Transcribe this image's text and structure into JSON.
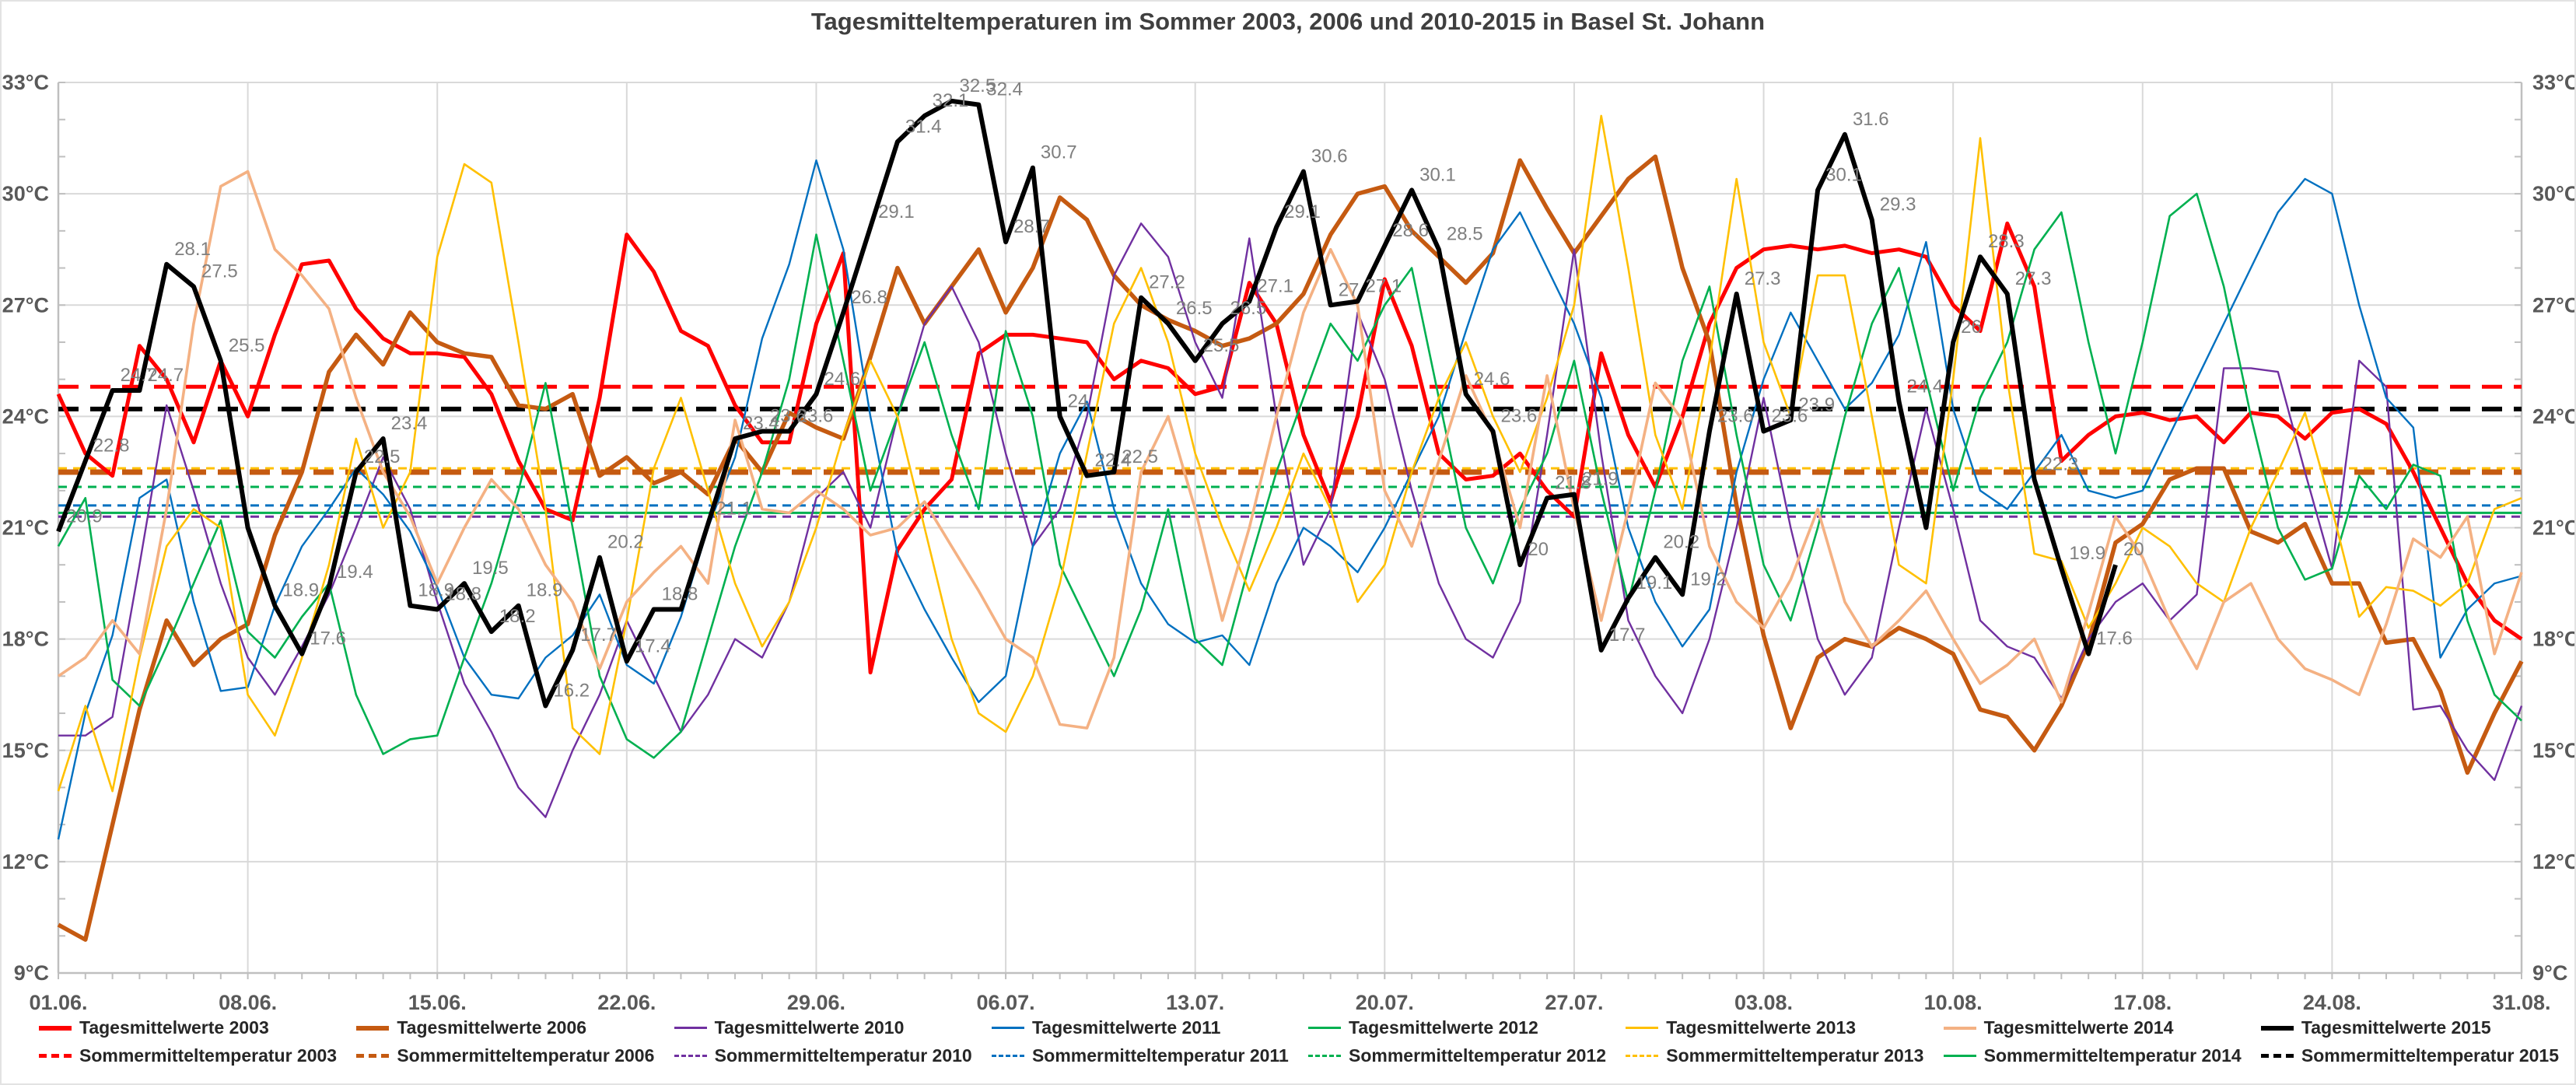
{
  "title": "Tagesmitteltemperaturen im Sommer 2003, 2006 und 2010-2015 in Basel St. Johann",
  "y_axis": {
    "unit": "°C",
    "min": 9,
    "max": 33,
    "major_step": 3,
    "minor_step": 1,
    "tick_labels": [
      "9°C",
      "12°C",
      "15°C",
      "18°C",
      "21°C",
      "24°C",
      "27°C",
      "30°C",
      "33°C"
    ],
    "shown_on_both_sides": true
  },
  "x_axis": {
    "days_total": 92,
    "tick_interval_days": 7,
    "minor_tick": "daily",
    "tick_labels": [
      "01.06.",
      "08.06.",
      "15.06.",
      "22.06.",
      "29.06.",
      "06.07.",
      "13.07.",
      "20.07.",
      "27.07.",
      "03.08.",
      "10.08.",
      "17.08.",
      "24.08.",
      "31.08."
    ]
  },
  "colors": {
    "grid": "#d9d9d9",
    "axis": "#bfbfbf",
    "tick_text": "#595959",
    "title_text": "#3f3f3f",
    "point_label_text": "#7f7f7f"
  },
  "chart_data": {
    "type": "line",
    "title": "Tagesmitteltemperaturen im Sommer 2003, 2006 und 2010-2015 in Basel St. Johann",
    "x_unit": "Tag (1 = 01.06., 92 = 31.08.)",
    "ylim": [
      9,
      33
    ],
    "grid": true,
    "legend_position": "bottom",
    "series": [
      {
        "name": "Tagesmittelwerte 2003",
        "color": "#ff0000",
        "width": 5,
        "values": [
          24.6,
          23.0,
          22.4,
          25.9,
          25.0,
          23.3,
          25.5,
          24.0,
          26.2,
          28.1,
          28.2,
          26.9,
          26.1,
          25.7,
          25.7,
          25.6,
          24.6,
          22.8,
          21.5,
          21.2,
          24.5,
          28.9,
          27.9,
          26.3,
          25.9,
          24.3,
          23.3,
          23.3,
          26.5,
          28.4,
          17.1,
          20.4,
          21.5,
          22.3,
          25.7,
          26.2,
          26.2,
          26.1,
          26.0,
          25.0,
          25.5,
          25.3,
          24.6,
          24.8,
          27.6,
          26.5,
          23.5,
          21.7,
          24.0,
          27.7,
          25.9,
          23.0,
          22.3,
          22.4,
          23.0,
          22.0,
          21.3,
          25.7,
          23.5,
          22.1,
          24.0,
          26.5,
          28.0,
          28.5,
          28.6,
          28.5,
          28.6,
          28.4,
          28.5,
          28.3,
          27.0,
          26.3,
          29.2,
          27.5,
          22.8,
          23.5,
          24.0,
          24.1,
          23.9,
          24.0,
          23.3,
          24.1,
          24.0,
          23.4,
          24.1,
          24.2,
          23.8,
          22.5,
          21.0,
          19.5,
          18.5,
          18.0
        ]
      },
      {
        "name": "Tagesmittelwerte 2006",
        "color": "#c55a11",
        "width": 5.5,
        "values": [
          10.3,
          9.9,
          13.0,
          16.1,
          18.5,
          17.3,
          18.0,
          18.4,
          20.8,
          22.5,
          25.2,
          26.2,
          25.4,
          26.8,
          26.0,
          25.7,
          25.6,
          24.3,
          24.2,
          24.6,
          22.4,
          22.9,
          22.2,
          22.5,
          21.9,
          23.4,
          22.5,
          24.1,
          23.7,
          23.4,
          25.6,
          28.0,
          26.5,
          27.5,
          28.5,
          26.8,
          28.0,
          29.9,
          29.3,
          27.8,
          27.0,
          26.6,
          26.3,
          25.9,
          26.1,
          26.5,
          27.3,
          28.9,
          30.0,
          30.2,
          29.0,
          28.3,
          27.6,
          28.4,
          30.9,
          29.6,
          28.4,
          29.4,
          30.4,
          31.0,
          28.0,
          26.0,
          21.6,
          18.1,
          15.6,
          17.5,
          18.0,
          17.8,
          18.3,
          18.0,
          17.6,
          16.1,
          15.9,
          15.0,
          16.2,
          17.9,
          20.6,
          21.1,
          22.3,
          22.6,
          22.6,
          20.9,
          20.6,
          21.1,
          19.5,
          19.5,
          17.9,
          18.0,
          16.6,
          14.4,
          16.0,
          17.4
        ]
      },
      {
        "name": "Tagesmittelwerte 2010",
        "color": "#7030a0",
        "width": 2.4,
        "values": [
          15.4,
          15.4,
          15.9,
          20.0,
          24.3,
          22.0,
          19.5,
          17.5,
          16.5,
          17.8,
          19.2,
          21.0,
          22.9,
          21.5,
          19.0,
          16.8,
          15.5,
          14.0,
          13.2,
          15.0,
          16.5,
          18.5,
          17.0,
          15.5,
          16.5,
          18.0,
          17.5,
          19.0,
          21.8,
          22.5,
          21.0,
          24.0,
          26.5,
          27.5,
          26.0,
          23.0,
          20.5,
          21.5,
          24.0,
          27.8,
          29.2,
          28.3,
          26.0,
          24.5,
          28.8,
          24.0,
          20.0,
          21.5,
          26.8,
          25.0,
          22.0,
          19.5,
          18.0,
          17.5,
          19.0,
          23.5,
          28.5,
          23.0,
          18.5,
          17.0,
          16.0,
          18.0,
          21.0,
          24.5,
          21.0,
          18.0,
          16.5,
          17.5,
          21.0,
          24.2,
          21.5,
          18.5,
          17.8,
          17.5,
          16.4,
          18.0,
          19.0,
          19.5,
          18.5,
          19.2,
          25.3,
          25.3,
          25.2,
          22.5,
          19.9,
          25.5,
          24.8,
          16.1,
          16.2,
          15.0,
          14.2,
          16.2
        ]
      },
      {
        "name": "Tagesmittelwerte 2011",
        "color": "#0070c0",
        "width": 2.4,
        "values": [
          12.6,
          16.0,
          18.1,
          21.8,
          22.3,
          19.0,
          16.6,
          16.7,
          18.9,
          20.5,
          21.5,
          22.6,
          21.9,
          20.9,
          19.4,
          17.5,
          16.5,
          16.4,
          17.5,
          18.1,
          19.2,
          17.3,
          16.8,
          18.6,
          21.0,
          22.9,
          26.1,
          28.1,
          30.9,
          28.5,
          24.0,
          20.3,
          18.8,
          17.5,
          16.3,
          17.0,
          20.5,
          23.0,
          24.4,
          21.5,
          19.5,
          18.4,
          17.9,
          18.1,
          17.3,
          19.5,
          21.0,
          20.5,
          19.8,
          21.0,
          22.5,
          24.0,
          26.3,
          28.5,
          29.5,
          28.0,
          26.5,
          24.5,
          21.0,
          19.0,
          17.8,
          18.8,
          22.5,
          25.0,
          26.8,
          25.5,
          24.2,
          24.9,
          26.2,
          28.7,
          24.2,
          22.0,
          21.5,
          22.5,
          23.5,
          22.0,
          21.8,
          22.0,
          23.5,
          25.0,
          26.5,
          28.0,
          29.5,
          30.4,
          30.0,
          27.0,
          24.5,
          23.7,
          17.5,
          18.8,
          19.5,
          19.7
        ]
      },
      {
        "name": "Tagesmittelwerte 2012",
        "color": "#00b050",
        "width": 2.6,
        "values": [
          20.5,
          21.8,
          16.9,
          16.2,
          17.8,
          19.5,
          21.2,
          18.2,
          17.5,
          18.6,
          19.5,
          16.5,
          14.9,
          15.3,
          15.4,
          17.5,
          19.5,
          22.0,
          24.9,
          21.0,
          17.0,
          15.3,
          14.8,
          15.5,
          18.0,
          20.5,
          22.5,
          25.0,
          28.9,
          25.5,
          22.0,
          24.0,
          26.0,
          23.5,
          21.5,
          26.3,
          24.0,
          20.0,
          18.5,
          17.0,
          18.8,
          21.5,
          18.0,
          17.3,
          20.0,
          22.5,
          24.5,
          26.5,
          25.5,
          27.0,
          28.0,
          24.5,
          21.0,
          19.5,
          21.5,
          23.0,
          25.5,
          22.0,
          19.0,
          22.0,
          25.5,
          27.5,
          23.5,
          20.0,
          18.5,
          21.0,
          24.0,
          26.5,
          28.0,
          25.0,
          22.0,
          24.5,
          26.0,
          28.5,
          29.5,
          26.0,
          23.0,
          26.0,
          29.4,
          30.0,
          27.5,
          24.0,
          21.0,
          19.6,
          19.9,
          22.4,
          21.5,
          22.7,
          22.4,
          18.5,
          16.5,
          15.8
        ]
      },
      {
        "name": "Tagesmittelwerte 2013",
        "color": "#ffc000",
        "width": 2.6,
        "values": [
          13.9,
          16.2,
          13.9,
          17.5,
          20.5,
          21.5,
          21.0,
          16.5,
          15.4,
          17.5,
          20.0,
          23.4,
          21.0,
          22.5,
          28.3,
          30.8,
          30.3,
          26.0,
          21.5,
          15.6,
          14.9,
          18.5,
          22.6,
          24.5,
          22.0,
          19.5,
          17.8,
          19.0,
          21.0,
          23.5,
          25.5,
          24.0,
          21.0,
          18.0,
          16.0,
          15.5,
          17.0,
          19.5,
          23.0,
          26.5,
          28.0,
          26.0,
          23.0,
          21.0,
          19.3,
          21.0,
          23.0,
          21.5,
          19.0,
          20.0,
          22.5,
          24.5,
          26.0,
          24.0,
          22.5,
          24.5,
          27.0,
          32.1,
          28.0,
          23.5,
          21.5,
          25.5,
          30.4,
          26.0,
          24.0,
          27.8,
          27.8,
          24.0,
          20.0,
          19.5,
          25.0,
          31.5,
          25.0,
          20.3,
          20.1,
          18.3,
          19.5,
          21.0,
          20.5,
          19.5,
          19.0,
          21.0,
          22.5,
          24.1,
          21.5,
          18.6,
          19.4,
          19.3,
          18.9,
          19.5,
          21.5,
          21.8
        ]
      },
      {
        "name": "Tagesmittelwerte 2014",
        "color": "#f4b183",
        "width": 3.6,
        "values": [
          17.0,
          17.5,
          18.5,
          17.6,
          21.5,
          26.5,
          30.2,
          30.6,
          28.5,
          27.8,
          26.9,
          24.5,
          22.5,
          21.3,
          19.5,
          21.0,
          22.3,
          21.5,
          20.0,
          19.0,
          17.2,
          19.0,
          19.8,
          20.5,
          19.5,
          23.9,
          21.5,
          21.4,
          22.0,
          21.5,
          20.8,
          21.0,
          21.7,
          20.5,
          19.3,
          18.0,
          17.5,
          15.7,
          15.6,
          17.5,
          22.5,
          24.0,
          21.5,
          18.5,
          21.0,
          24.0,
          26.8,
          28.5,
          27.0,
          22.0,
          20.5,
          22.8,
          25.1,
          23.5,
          21.0,
          25.1,
          21.5,
          18.5,
          21.5,
          24.9,
          23.9,
          20.5,
          19.0,
          18.3,
          19.6,
          21.5,
          19.0,
          17.8,
          18.5,
          19.3,
          18.0,
          16.8,
          17.3,
          18.0,
          16.3,
          18.7,
          21.3,
          20.2,
          18.5,
          17.2,
          19.0,
          19.5,
          18.0,
          17.2,
          16.9,
          16.5,
          18.4,
          20.7,
          20.2,
          21.3,
          17.6,
          19.8
        ]
      },
      {
        "name": "Tagesmittelwerte 2015",
        "color": "#000000",
        "width": 6,
        "values": [
          20.9,
          22.8,
          24.7,
          24.7,
          28.1,
          27.5,
          25.5,
          21.0,
          18.9,
          17.6,
          19.4,
          22.5,
          23.4,
          18.9,
          18.8,
          19.5,
          18.2,
          18.9,
          16.2,
          17.7,
          20.2,
          17.4,
          18.8,
          18.8,
          21.1,
          23.4,
          23.6,
          23.6,
          24.6,
          26.8,
          29.1,
          31.4,
          32.1,
          32.5,
          32.4,
          28.7,
          30.7,
          24.0,
          22.4,
          22.5,
          27.2,
          26.5,
          25.5,
          26.5,
          27.1,
          29.1,
          30.6,
          27.0,
          27.1,
          28.6,
          30.1,
          28.5,
          24.6,
          23.6,
          20.0,
          21.8,
          21.9,
          17.7,
          19.1,
          20.2,
          19.2,
          23.6,
          27.3,
          23.6,
          23.9,
          30.1,
          31.6,
          29.3,
          24.4,
          21.0,
          26.0,
          28.3,
          27.3,
          22.3,
          19.9,
          17.6,
          20.0
        ]
      }
    ],
    "point_labels": {
      "series": "Tagesmittelwerte 2015",
      "labels": [
        20.9,
        22.8,
        24.7,
        24.7,
        28.1,
        27.5,
        25.5,
        null,
        18.9,
        17.6,
        19.4,
        22.5,
        23.4,
        18.9,
        18.8,
        19.5,
        18.2,
        18.9,
        16.2,
        17.7,
        20.2,
        17.4,
        18.8,
        null,
        21.1,
        23.4,
        23.6,
        23.6,
        24.6,
        26.8,
        29.1,
        31.4,
        32.1,
        32.5,
        32.4,
        28.7,
        30.7,
        24,
        22.4,
        22.5,
        27.2,
        26.5,
        25.5,
        26.5,
        27.1,
        29.1,
        30.6,
        27,
        27.1,
        28.6,
        30.1,
        28.5,
        24.6,
        23.6,
        20,
        21.8,
        21.9,
        17.7,
        19.1,
        20.2,
        19.2,
        23.6,
        27.3,
        23.6,
        23.9,
        30.1,
        31.6,
        29.3,
        24.4,
        null,
        26,
        28.3,
        27.3,
        22.3,
        19.9,
        17.6,
        20
      ]
    },
    "means": [
      {
        "name": "Sommermitteltemperatur 2003",
        "color": "#ff0000",
        "value": 24.8,
        "style": "dashed-bold",
        "width": 5
      },
      {
        "name": "Sommermitteltemperatur 2006",
        "color": "#c55a11",
        "value": 22.5,
        "style": "dashed-bold",
        "width": 7
      },
      {
        "name": "Sommermitteltemperatur 2010",
        "color": "#7030a0",
        "value": 21.3,
        "style": "dashed",
        "width": 3
      },
      {
        "name": "Sommermitteltemperatur 2011",
        "color": "#0070c0",
        "value": 21.6,
        "style": "dashed",
        "width": 3
      },
      {
        "name": "Sommermitteltemperatur 2012",
        "color": "#00b050",
        "value": 22.1,
        "style": "dashed",
        "width": 3
      },
      {
        "name": "Sommermitteltemperatur 2013",
        "color": "#ffc000",
        "value": 22.6,
        "style": "dashed",
        "width": 3
      },
      {
        "name": "Sommermitteltemperatur 2014",
        "color": "#00b050",
        "value": 21.4,
        "style": "solid",
        "width": 3
      },
      {
        "name": "Sommermitteltemperatur 2015",
        "color": "#000000",
        "value": 24.2,
        "style": "dashed-bold",
        "width": 6
      }
    ]
  },
  "legend": {
    "columns": [
      {
        "year": "2003",
        "daily_label": "Tagesmittelwerte 2003",
        "mean_label": "Sommermitteltemperatur 2003"
      },
      {
        "year": "2006",
        "daily_label": "Tagesmittelwerte 2006",
        "mean_label": "Sommermitteltemperatur 2006"
      },
      {
        "year": "2010",
        "daily_label": "Tagesmittelwerte 2010",
        "mean_label": "Sommermitteltemperatur 2010"
      },
      {
        "year": "2011",
        "daily_label": "Tagesmittelwerte 2011",
        "mean_label": "Sommermitteltemperatur 2011"
      },
      {
        "year": "2012",
        "daily_label": "Tagesmittelwerte 2012",
        "mean_label": "Sommermitteltemperatur 2012"
      },
      {
        "year": "2013",
        "daily_label": "Tagesmittelwerte 2013",
        "mean_label": "Sommermitteltemperatur 2013"
      },
      {
        "year": "2014",
        "daily_label": "Tagesmittelwerte 2014",
        "mean_label": "Sommermitteltemperatur 2014"
      },
      {
        "year": "2015",
        "daily_label": "Tagesmittelwerte 2015",
        "mean_label": "Sommermitteltemperatur 2015"
      }
    ]
  }
}
